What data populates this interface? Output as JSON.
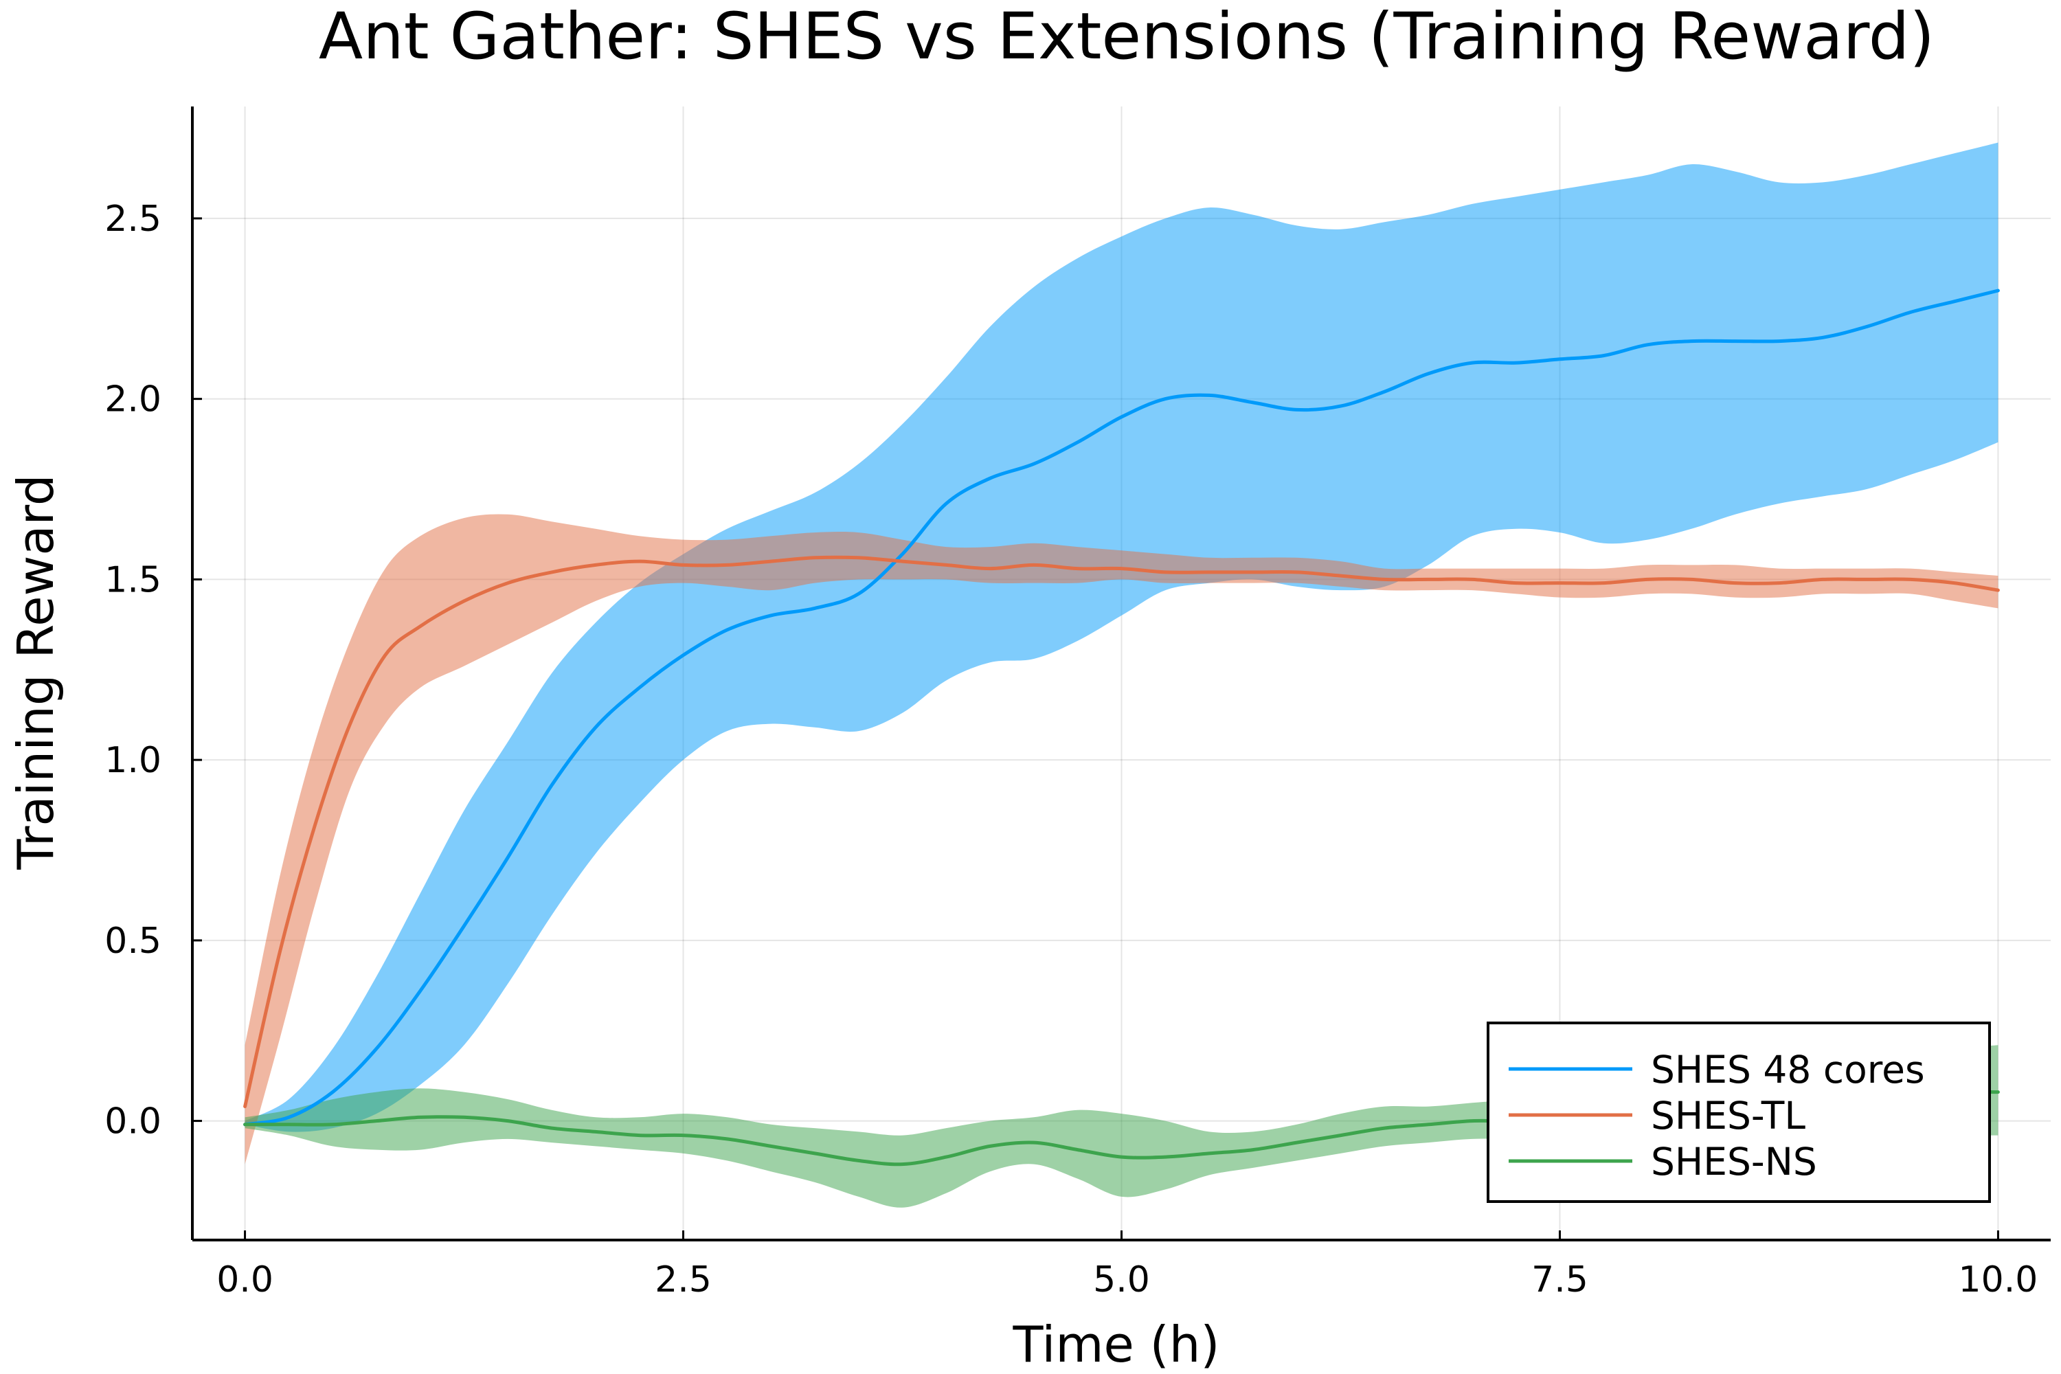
{
  "chart_data": {
    "type": "line",
    "title": "Ant Gather: SHES vs Extensions (Training Reward)",
    "xlabel": "Time (h)",
    "ylabel": "Training Reward",
    "xlim": [
      -0.3,
      10.3
    ],
    "ylim": [
      -0.33,
      2.81
    ],
    "xticks": [
      0.0,
      2.5,
      5.0,
      7.5,
      10.0
    ],
    "xtick_labels": [
      "0.0",
      "2.5",
      "5.0",
      "7.5",
      "10.0"
    ],
    "yticks": [
      0.0,
      0.5,
      1.0,
      1.5,
      2.0,
      2.5
    ],
    "ytick_labels": [
      "0.0",
      "0.5",
      "1.0",
      "1.5",
      "2.0",
      "2.5"
    ],
    "grid": true,
    "legend_position": "bottom-right",
    "series": [
      {
        "name": "SHES 48 cores",
        "color": "#009AFA",
        "band_color": "#009AFA",
        "x": [
          0.0,
          0.25,
          0.5,
          0.75,
          1.0,
          1.25,
          1.5,
          1.75,
          2.0,
          2.25,
          2.5,
          2.75,
          3.0,
          3.25,
          3.5,
          3.75,
          4.0,
          4.25,
          4.5,
          4.75,
          5.0,
          5.25,
          5.5,
          5.75,
          6.0,
          6.25,
          6.5,
          6.75,
          7.0,
          7.25,
          7.5,
          7.75,
          8.0,
          8.25,
          8.5,
          8.75,
          9.0,
          9.25,
          9.5,
          9.75,
          10.0
        ],
        "mean": [
          -0.01,
          0.01,
          0.08,
          0.2,
          0.36,
          0.54,
          0.73,
          0.93,
          1.09,
          1.2,
          1.29,
          1.36,
          1.4,
          1.42,
          1.46,
          1.57,
          1.71,
          1.78,
          1.82,
          1.88,
          1.95,
          2.0,
          2.01,
          1.99,
          1.97,
          1.98,
          2.02,
          2.07,
          2.1,
          2.1,
          2.11,
          2.12,
          2.15,
          2.16,
          2.16,
          2.16,
          2.17,
          2.2,
          2.24,
          2.27,
          2.3
        ],
        "lower": [
          -0.01,
          -0.03,
          -0.02,
          0.02,
          0.1,
          0.21,
          0.38,
          0.57,
          0.74,
          0.88,
          1.0,
          1.08,
          1.1,
          1.09,
          1.08,
          1.13,
          1.22,
          1.27,
          1.28,
          1.33,
          1.4,
          1.47,
          1.49,
          1.5,
          1.48,
          1.47,
          1.48,
          1.54,
          1.62,
          1.64,
          1.63,
          1.6,
          1.61,
          1.64,
          1.68,
          1.71,
          1.73,
          1.75,
          1.79,
          1.83,
          1.88
        ],
        "upper": [
          0.0,
          0.06,
          0.2,
          0.4,
          0.63,
          0.86,
          1.05,
          1.24,
          1.38,
          1.49,
          1.57,
          1.64,
          1.69,
          1.74,
          1.82,
          1.93,
          2.06,
          2.2,
          2.31,
          2.39,
          2.45,
          2.5,
          2.53,
          2.51,
          2.48,
          2.47,
          2.49,
          2.51,
          2.54,
          2.56,
          2.58,
          2.6,
          2.62,
          2.65,
          2.63,
          2.6,
          2.6,
          2.62,
          2.65,
          2.68,
          2.71
        ]
      },
      {
        "name": "SHES-TL",
        "color": "#E26F46",
        "band_color": "#E26F46",
        "x": [
          0.0,
          0.2,
          0.4,
          0.6,
          0.8,
          1.0,
          1.25,
          1.5,
          1.75,
          2.0,
          2.25,
          2.5,
          2.75,
          3.0,
          3.25,
          3.5,
          3.75,
          4.0,
          4.25,
          4.5,
          4.75,
          5.0,
          5.25,
          5.5,
          5.75,
          6.0,
          6.25,
          6.5,
          6.75,
          7.0,
          7.25,
          7.5,
          7.75,
          8.0,
          8.25,
          8.5,
          8.75,
          9.0,
          9.25,
          9.5,
          9.75,
          10.0
        ],
        "mean": [
          0.04,
          0.47,
          0.82,
          1.1,
          1.29,
          1.37,
          1.44,
          1.49,
          1.52,
          1.54,
          1.55,
          1.54,
          1.54,
          1.55,
          1.56,
          1.56,
          1.55,
          1.54,
          1.53,
          1.54,
          1.53,
          1.53,
          1.52,
          1.52,
          1.52,
          1.52,
          1.51,
          1.5,
          1.5,
          1.5,
          1.49,
          1.49,
          1.49,
          1.5,
          1.5,
          1.49,
          1.49,
          1.5,
          1.5,
          1.5,
          1.49,
          1.47
        ],
        "lower": [
          -0.12,
          0.23,
          0.6,
          0.92,
          1.1,
          1.2,
          1.26,
          1.32,
          1.38,
          1.44,
          1.48,
          1.49,
          1.48,
          1.47,
          1.49,
          1.5,
          1.5,
          1.5,
          1.49,
          1.49,
          1.49,
          1.5,
          1.49,
          1.49,
          1.49,
          1.49,
          1.48,
          1.47,
          1.47,
          1.47,
          1.46,
          1.45,
          1.45,
          1.46,
          1.46,
          1.45,
          1.45,
          1.46,
          1.46,
          1.46,
          1.44,
          1.42
        ],
        "upper": [
          0.21,
          0.68,
          1.05,
          1.33,
          1.53,
          1.62,
          1.67,
          1.68,
          1.66,
          1.64,
          1.62,
          1.61,
          1.61,
          1.62,
          1.63,
          1.63,
          1.61,
          1.59,
          1.59,
          1.6,
          1.59,
          1.58,
          1.57,
          1.56,
          1.56,
          1.56,
          1.55,
          1.53,
          1.53,
          1.53,
          1.53,
          1.53,
          1.53,
          1.54,
          1.54,
          1.54,
          1.53,
          1.53,
          1.53,
          1.53,
          1.52,
          1.51
        ]
      },
      {
        "name": "SHES-NS",
        "color": "#3DA44D",
        "band_color": "#3DA44D",
        "x": [
          0.0,
          0.25,
          0.5,
          0.75,
          1.0,
          1.25,
          1.5,
          1.75,
          2.0,
          2.25,
          2.5,
          2.75,
          3.0,
          3.25,
          3.5,
          3.75,
          4.0,
          4.25,
          4.5,
          4.75,
          5.0,
          5.25,
          5.5,
          5.75,
          6.0,
          6.25,
          6.5,
          6.75,
          7.0,
          7.25,
          7.5,
          7.75,
          8.0,
          8.25,
          8.5,
          8.75,
          9.0,
          9.25,
          9.5,
          9.75,
          10.0
        ],
        "mean": [
          -0.01,
          -0.01,
          -0.01,
          0.0,
          0.01,
          0.01,
          0.0,
          -0.02,
          -0.03,
          -0.04,
          -0.04,
          -0.05,
          -0.07,
          -0.09,
          -0.11,
          -0.12,
          -0.1,
          -0.07,
          -0.06,
          -0.08,
          -0.1,
          -0.1,
          -0.09,
          -0.08,
          -0.06,
          -0.04,
          -0.02,
          -0.01,
          0.0,
          0.0,
          0.01,
          0.02,
          0.03,
          0.04,
          0.05,
          0.06,
          0.06,
          0.07,
          0.07,
          0.08,
          0.08
        ],
        "lower": [
          -0.02,
          -0.04,
          -0.07,
          -0.08,
          -0.08,
          -0.06,
          -0.05,
          -0.06,
          -0.07,
          -0.08,
          -0.09,
          -0.11,
          -0.14,
          -0.17,
          -0.21,
          -0.24,
          -0.2,
          -0.14,
          -0.12,
          -0.16,
          -0.21,
          -0.19,
          -0.15,
          -0.13,
          -0.11,
          -0.09,
          -0.07,
          -0.06,
          -0.05,
          -0.05,
          -0.05,
          -0.05,
          -0.05,
          -0.04,
          -0.04,
          -0.04,
          -0.04,
          -0.04,
          -0.04,
          -0.04,
          -0.04
        ],
        "upper": [
          0.01,
          0.03,
          0.06,
          0.08,
          0.09,
          0.08,
          0.06,
          0.03,
          0.01,
          0.01,
          0.02,
          0.01,
          -0.01,
          -0.02,
          -0.03,
          -0.04,
          -0.02,
          0.0,
          0.01,
          0.03,
          0.02,
          0.0,
          -0.03,
          -0.03,
          -0.01,
          0.02,
          0.04,
          0.04,
          0.05,
          0.06,
          0.07,
          0.09,
          0.11,
          0.13,
          0.15,
          0.16,
          0.17,
          0.18,
          0.19,
          0.2,
          0.21
        ]
      }
    ]
  }
}
